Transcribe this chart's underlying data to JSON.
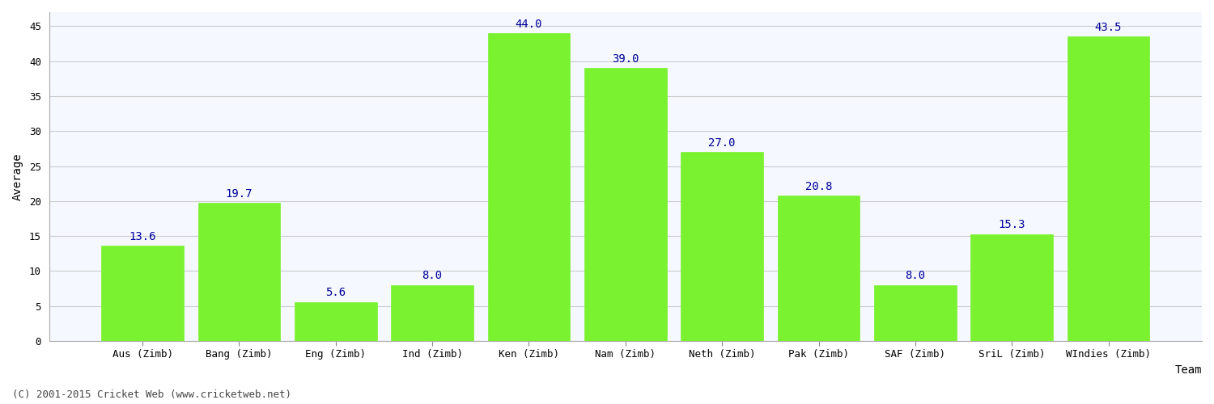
{
  "categories": [
    "Aus (Zimb)",
    "Bang (Zimb)",
    "Eng (Zimb)",
    "Ind (Zimb)",
    "Ken (Zimb)",
    "Nam (Zimb)",
    "Neth (Zimb)",
    "Pak (Zimb)",
    "SAF (Zimb)",
    "SriL (Zimb)",
    "WIndies (Zimb)"
  ],
  "values": [
    13.6,
    19.7,
    5.6,
    8.0,
    44.0,
    39.0,
    27.0,
    20.8,
    8.0,
    15.3,
    43.5
  ],
  "bar_color": "#7BF230",
  "bar_edge_color": "#7BF230",
  "xlabel": "Team",
  "ylabel": "Average",
  "ylim": [
    0,
    47
  ],
  "yticks": [
    0,
    5,
    10,
    15,
    20,
    25,
    30,
    35,
    40,
    45
  ],
  "label_color": "#000099",
  "label_fontsize": 10,
  "axis_label_fontsize": 10,
  "tick_fontsize": 9,
  "grid_color": "#cccccc",
  "background_color": "#ffffff",
  "plot_bg_color": "#f5f8ff",
  "footer_text": "(C) 2001-2015 Cricket Web (www.cricketweb.net)",
  "footer_fontsize": 9,
  "footer_color": "#444444"
}
